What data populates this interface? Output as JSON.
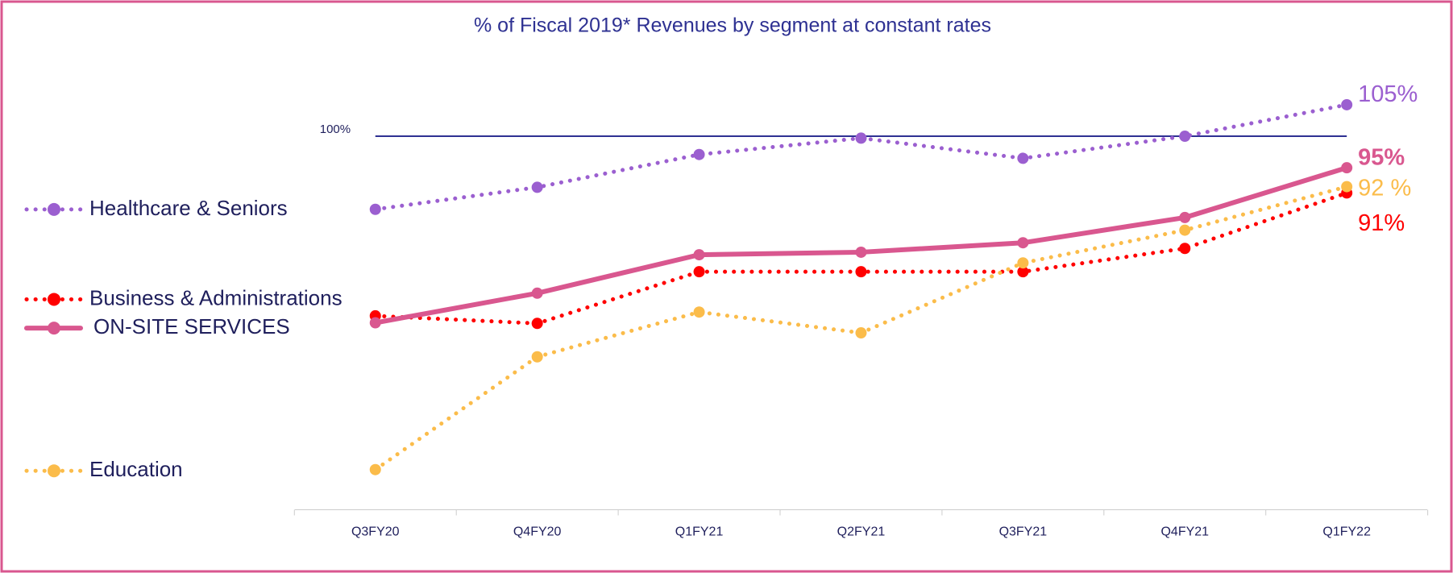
{
  "chart_data": {
    "type": "line",
    "title": "% of Fiscal 2019* Revenues by segment at constant rates",
    "categories": [
      "Q3FY20",
      "Q4FY20",
      "Q1FY21",
      "Q2FY21",
      "Q3FY21",
      "Q4FY21",
      "Q1FY22"
    ],
    "ylim": [
      40,
      110
    ],
    "reference_line": {
      "value": 100,
      "label": "100%",
      "color": "#2e3192"
    },
    "series": [
      {
        "name": "Healthcare & Seniors",
        "color": "#9b5fd0",
        "style": "dotted",
        "values": [
          88.4,
          91.9,
          97.1,
          99.7,
          96.5,
          100,
          105
        ],
        "value_labels": [
          null,
          null,
          null,
          null,
          null,
          null,
          "105%"
        ]
      },
      {
        "name": "Business & Administrations",
        "color": "#ff0000",
        "style": "dotted",
        "values": [
          71.5,
          70.3,
          78.5,
          78.5,
          78.5,
          82.2,
          91
        ],
        "value_labels": [
          null,
          null,
          null,
          null,
          null,
          null,
          "91%"
        ]
      },
      {
        "name": "ON-SITE SERVICES",
        "color": "#d9578f",
        "style": "solid",
        "values": [
          70.4,
          75.1,
          81.2,
          81.6,
          83.1,
          87.1,
          95
        ],
        "value_labels": [
          null,
          null,
          null,
          null,
          null,
          null,
          "95%"
        ]
      },
      {
        "name": "Education",
        "color": "#fbbc4a",
        "style": "dotted",
        "values": [
          47.1,
          65,
          72.1,
          68.8,
          79.9,
          85.1,
          92
        ],
        "value_labels": [
          null,
          null,
          null,
          null,
          null,
          null,
          "92 %"
        ]
      }
    ]
  }
}
